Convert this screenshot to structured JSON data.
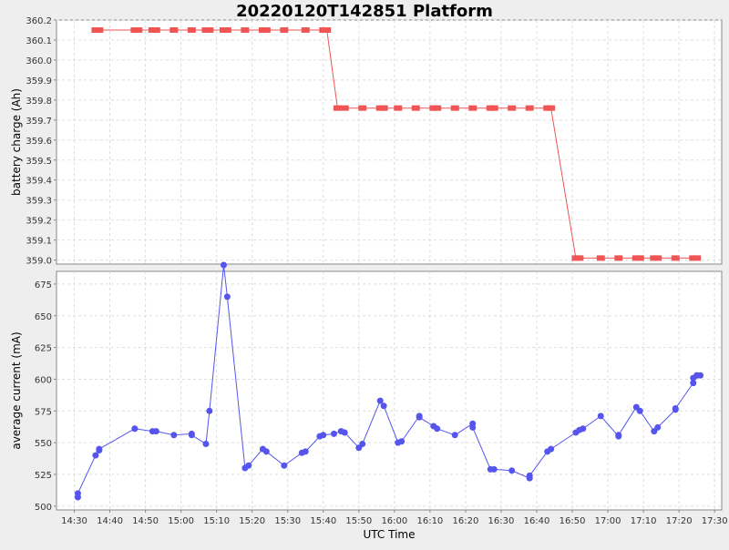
{
  "chart_data": {
    "title": "20220120T142851 Platform",
    "x_axis": {
      "label": "UTC Time",
      "ticks": [
        "14:30",
        "14:40",
        "14:50",
        "15:00",
        "15:10",
        "15:20",
        "15:30",
        "15:40",
        "15:50",
        "16:00",
        "16:10",
        "16:20",
        "16:30",
        "16:40",
        "16:50",
        "17:00",
        "17:10",
        "17:20",
        "17:30"
      ]
    },
    "charts": [
      {
        "type": "line",
        "ylabel": "battery charge (Ah)",
        "ylim": [
          358.98,
          360.2
        ],
        "yticks": [
          "359.0",
          "359.1",
          "359.2",
          "359.3",
          "359.4",
          "359.5",
          "359.6",
          "359.7",
          "359.8",
          "359.9",
          "360.0",
          "360.1",
          "360.2"
        ],
        "marker": "square",
        "color": "#ef5555",
        "grid": true,
        "series": [
          {
            "x": [
              "14:36",
              "14:37",
              "14:47",
              "14:48",
              "14:52",
              "14:53",
              "14:58",
              "15:03",
              "15:07",
              "15:08",
              "15:12",
              "15:13",
              "15:18",
              "15:23",
              "15:24",
              "15:29",
              "15:35",
              "15:40",
              "15:41",
              "15:44",
              "15:46",
              "15:51",
              "15:56",
              "15:57",
              "16:01",
              "16:06",
              "16:11",
              "16:12",
              "16:17",
              "16:22",
              "16:27",
              "16:28",
              "16:33",
              "16:38",
              "16:43",
              "16:44",
              "16:51",
              "16:52",
              "16:58",
              "17:03",
              "17:08",
              "17:09",
              "17:13",
              "17:14",
              "17:19",
              "17:24",
              "17:25"
            ],
            "y": [
              360.15,
              360.15,
              360.15,
              360.15,
              360.15,
              360.15,
              360.15,
              360.15,
              360.15,
              360.15,
              360.15,
              360.15,
              360.15,
              360.15,
              360.15,
              360.15,
              360.15,
              360.15,
              360.15,
              359.76,
              359.76,
              359.76,
              359.76,
              359.76,
              359.76,
              359.76,
              359.76,
              359.76,
              359.76,
              359.76,
              359.76,
              359.76,
              359.76,
              359.76,
              359.76,
              359.76,
              359.01,
              359.01,
              359.01,
              359.01,
              359.01,
              359.01,
              359.01,
              359.01,
              359.01,
              359.01,
              359.01
            ]
          }
        ]
      },
      {
        "type": "line",
        "ylabel": "average current (mA)",
        "ylim": [
          497,
          685
        ],
        "yticks": [
          "500",
          "525",
          "550",
          "575",
          "600",
          "625",
          "650",
          "675"
        ],
        "marker": "circle",
        "color": "#5555ee",
        "grid": true,
        "series": [
          {
            "x": [
              "14:31",
              "14:31",
              "14:36",
              "14:37",
              "14:37",
              "14:47",
              "14:47",
              "14:52",
              "14:53",
              "14:58",
              "15:03",
              "15:03",
              "15:07",
              "15:08",
              "15:12",
              "15:13",
              "15:18",
              "15:19",
              "15:23",
              "15:24",
              "15:29",
              "15:34",
              "15:35",
              "15:39",
              "15:40",
              "15:43",
              "15:45",
              "15:46",
              "15:50",
              "15:51",
              "15:56",
              "15:57",
              "16:01",
              "16:02",
              "16:07",
              "16:07",
              "16:11",
              "16:12",
              "16:17",
              "16:22",
              "16:22",
              "16:27",
              "16:28",
              "16:33",
              "16:38",
              "16:38",
              "16:43",
              "16:44",
              "16:51",
              "16:52",
              "16:53",
              "16:58",
              "17:03",
              "17:03",
              "17:08",
              "17:09",
              "17:13",
              "17:14",
              "17:19",
              "17:19",
              "17:24",
              "17:24",
              "17:25",
              "17:25",
              "17:26"
            ],
            "y": [
              507,
              510,
              540,
              544,
              545,
              561,
              561,
              559,
              559,
              556,
              557,
              556,
              549,
              575,
              690,
              665,
              530,
              532,
              545,
              543,
              532,
              542,
              543,
              555,
              556,
              557,
              559,
              558,
              546,
              549,
              583,
              579,
              550,
              551,
              571,
              570,
              563,
              561,
              556,
              565,
              562,
              529,
              529,
              528,
              522,
              524,
              543,
              545,
              558,
              560,
              561,
              571,
              555,
              556,
              578,
              575,
              559,
              562,
              576,
              577,
              597,
              601,
              603,
              603,
              603
            ]
          }
        ]
      }
    ]
  }
}
